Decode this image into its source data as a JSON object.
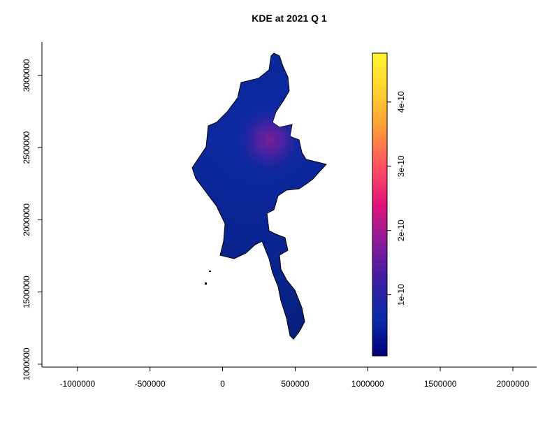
{
  "chart_data": {
    "type": "map",
    "title": "KDE at 2021 Q 1",
    "xlim": [
      -1245000,
      2164000
    ],
    "xticks": [
      -1000000,
      -500000,
      0,
      500000,
      1000000,
      1500000,
      2000000
    ],
    "ylim": [
      980000,
      3232000
    ],
    "yticks": [
      1000000,
      1500000,
      2000000,
      2500000,
      3000000
    ],
    "colorbar": {
      "lim": [
        5e-12,
        4.76e-10
      ],
      "ticks": [
        1e-10,
        2e-10,
        3e-10,
        4e-10
      ],
      "colors": [
        "#00007a",
        "#0a2ca8",
        "#3a1fa0",
        "#8a1a9a",
        "#e0147a",
        "#ff5060",
        "#ff9a3a",
        "#ffd230",
        "#fff530"
      ]
    }
  }
}
